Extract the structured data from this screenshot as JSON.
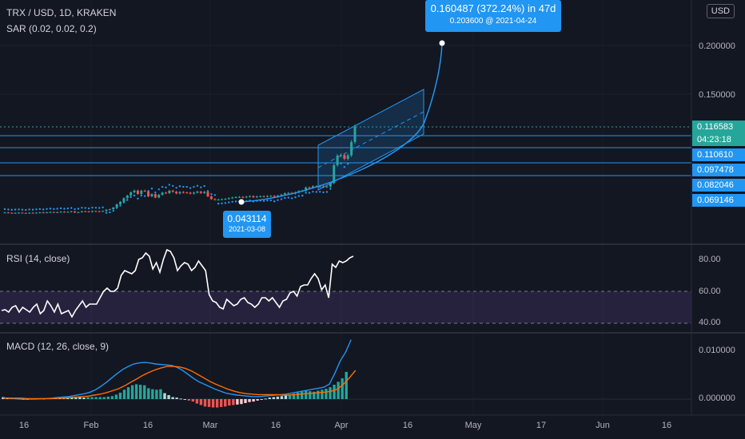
{
  "header": {
    "symbol_line": "TRX / USD, 1D, KRAKEN",
    "sar_line": "SAR (0.02, 0.02, 0.2)",
    "currency_button": "USD"
  },
  "projection": {
    "headline": "0.160487 (372.24%) in 47d",
    "subline_price": "0.203600",
    "subline_at": "@",
    "subline_date": "2021-04-24"
  },
  "low_marker": {
    "price": "0.043114",
    "date": "2021-03-08"
  },
  "price_axis": {
    "labels": [
      "0.200000",
      "0.150000"
    ],
    "tags": [
      {
        "text": "0.116583",
        "color": "#26a69a"
      },
      {
        "text": "04:23:18",
        "color": "#26a69a"
      },
      {
        "text": "0.110610",
        "color": "#2196f3"
      },
      {
        "text": "0.097478",
        "color": "#2196f3"
      },
      {
        "text": "0.082046",
        "color": "#2196f3"
      },
      {
        "text": "0.069146",
        "color": "#2196f3"
      }
    ]
  },
  "rsi_panel": {
    "title": "RSI (14, close)",
    "labels": [
      "80.00",
      "60.00",
      "40.00"
    ]
  },
  "macd_panel": {
    "title": "MACD (12, 26, close, 9)",
    "labels": [
      "0.010000",
      "0.000000"
    ]
  },
  "time_axis": {
    "labels": [
      "16",
      "Feb",
      "16",
      "Mar",
      "16",
      "Apr",
      "16",
      "May",
      "17",
      "Jun",
      "16"
    ]
  },
  "chart_data": [
    {
      "type": "candlestick",
      "title": "TRX / USD, 1D, KRAKEN",
      "ylim": [
        0.04,
        0.21
      ],
      "horizontal_levels": [
        0.11061,
        0.097478,
        0.082046,
        0.069146
      ],
      "last_price": 0.116583,
      "projection_target": {
        "price": 0.2036,
        "date": "2021-04-24",
        "change": 0.160487,
        "percent": 372.24,
        "days": 47
      },
      "anchor_low": {
        "price": 0.043114,
        "date": "2021-03-08"
      },
      "closes": [
        0.0285,
        0.0282,
        0.0279,
        0.0281,
        0.0283,
        0.028,
        0.0278,
        0.0282,
        0.028,
        0.0283,
        0.0286,
        0.0282,
        0.0287,
        0.029,
        0.0286,
        0.0289,
        0.0293,
        0.0289,
        0.0292,
        0.0296,
        0.0285,
        0.0289,
        0.0298,
        0.0296,
        0.0292,
        0.0299,
        0.0298,
        0.0296,
        0.0301,
        0.0313,
        0.0319,
        0.0336,
        0.0369,
        0.0395,
        0.0432,
        0.0459,
        0.0492,
        0.051,
        0.0475,
        0.0509,
        0.0504,
        0.0451,
        0.0474,
        0.0439,
        0.0467,
        0.0489,
        0.0484,
        0.0509,
        0.0498,
        0.0481,
        0.0495,
        0.049,
        0.0489,
        0.0479,
        0.0489,
        0.0499,
        0.0485,
        0.0497,
        0.0451,
        0.0423,
        0.0415,
        0.0418,
        0.0421,
        0.0425,
        0.0432,
        0.0439,
        0.0443,
        0.0445,
        0.0441,
        0.0447,
        0.0453,
        0.0442,
        0.0449,
        0.0452,
        0.0449,
        0.0454,
        0.0455,
        0.0444,
        0.0458,
        0.0468,
        0.0482,
        0.0486,
        0.0479,
        0.0491,
        0.0505,
        0.0509,
        0.0542,
        0.0541,
        0.0554,
        0.0551,
        0.0553,
        0.0547,
        0.0551,
        0.0587,
        0.0771,
        0.0869,
        0.0876,
        0.0836,
        0.0872,
        0.1009,
        0.1166
      ]
    },
    {
      "type": "line",
      "title": "RSI (14, close)",
      "ylim": [
        35,
        90
      ],
      "levels": [
        60,
        40
      ],
      "values": [
        48,
        48.5,
        47,
        50,
        51,
        47,
        50,
        48.5,
        47,
        50,
        52,
        46,
        48,
        54,
        51,
        47,
        52,
        46,
        47,
        48,
        44,
        48,
        51,
        54,
        50,
        52,
        52,
        52,
        56,
        60,
        62,
        60,
        60,
        62,
        70,
        73,
        72,
        71,
        73,
        80,
        81,
        84,
        82,
        74,
        78,
        72,
        80,
        86,
        85,
        81,
        73,
        76,
        78,
        77,
        73,
        75,
        79,
        76,
        73,
        58,
        54,
        53,
        50,
        49,
        55,
        53,
        51,
        52,
        55,
        56,
        53,
        52,
        50,
        52,
        56,
        56,
        54,
        56,
        53,
        50,
        54,
        55,
        59,
        60,
        57,
        63,
        64,
        64,
        68,
        71,
        68,
        61,
        64,
        56,
        77,
        75,
        79,
        78,
        79,
        81,
        82
      ]
    },
    {
      "type": "bar_and_line",
      "title": "MACD (12, 26, close, 9)",
      "ylim": [
        -0.004,
        0.014
      ],
      "histogram": [
        0.0004,
        0.0003,
        0.0002,
        0.0002,
        0.0001,
        0.0,
        0.0,
        0.0001,
        0.0001,
        0.0001,
        0.0001,
        0.0002,
        0.0002,
        0.0002,
        0.0003,
        0.0002,
        0.0003,
        0.0003,
        0.0003,
        0.0004,
        0.0003,
        0.0004,
        0.0004,
        0.0004,
        0.0004,
        0.0004,
        0.0005,
        0.0006,
        0.0009,
        0.0013,
        0.0019,
        0.0024,
        0.0028,
        0.003,
        0.0029,
        0.0028,
        0.0022,
        0.002,
        0.0019,
        0.002,
        0.0012,
        0.0008,
        0.0004,
        0.0003,
        0.0001,
        0.0,
        -0.0003,
        -0.0005,
        -0.0009,
        -0.0012,
        -0.0015,
        -0.0016,
        -0.0017,
        -0.0017,
        -0.0016,
        -0.0015,
        -0.0013,
        -0.0012,
        -0.0011,
        -0.001,
        -0.0008,
        -0.0006,
        -0.0005,
        -0.0003,
        -0.0001,
        0.0001,
        0.0003,
        0.0004,
        0.0005,
        0.0006,
        0.0008,
        0.0009,
        0.0011,
        0.0013,
        0.0015,
        0.0017,
        0.0016,
        0.0015,
        0.0017,
        0.0019,
        0.0021,
        0.0024,
        0.0029,
        0.0035,
        0.0042,
        0.0055
      ],
      "macd": [
        0.0002,
        0.0002,
        0.0001,
        0.0,
        0.0,
        0.0,
        0.0,
        0.0001,
        0.0001,
        0.0002,
        0.0003,
        0.0004,
        0.0005,
        0.0007,
        0.0009,
        0.0011,
        0.0014,
        0.0019,
        0.0026,
        0.0034,
        0.0043,
        0.0052,
        0.006,
        0.0066,
        0.0071,
        0.0073,
        0.0074,
        0.0073,
        0.0071,
        0.007,
        0.0069,
        0.0068,
        0.0064,
        0.0058,
        0.005,
        0.0042,
        0.0035,
        0.003,
        0.0025,
        0.002,
        0.0016,
        0.0012,
        0.001,
        0.0008,
        0.0007,
        0.0006,
        0.0005,
        0.0005,
        0.0006,
        0.0007,
        0.0008,
        0.0009,
        0.001,
        0.0012,
        0.0014,
        0.0016,
        0.0018,
        0.002,
        0.0022,
        0.0024,
        0.003,
        0.0052,
        0.0077,
        0.0095,
        0.012
      ],
      "signal": [
        0.0002,
        0.0002,
        0.0002,
        0.0002,
        0.0001,
        0.0001,
        0.0001,
        0.0001,
        0.0001,
        0.0002,
        0.0002,
        0.0003,
        0.0004,
        0.0005,
        0.0006,
        0.0008,
        0.001,
        0.0013,
        0.0017,
        0.0021,
        0.0027,
        0.0034,
        0.0041,
        0.0048,
        0.0054,
        0.0059,
        0.0063,
        0.0066,
        0.0066,
        0.0065,
        0.0062,
        0.0057,
        0.005,
        0.0043,
        0.0036,
        0.003,
        0.0025,
        0.002,
        0.0016,
        0.0013,
        0.0011,
        0.001,
        0.0009,
        0.0009,
        0.0009,
        0.0009,
        0.0008,
        0.0008,
        0.0009,
        0.001,
        0.0011,
        0.0012,
        0.0013,
        0.0014,
        0.0016,
        0.002,
        0.003,
        0.0043,
        0.0058
      ]
    }
  ]
}
